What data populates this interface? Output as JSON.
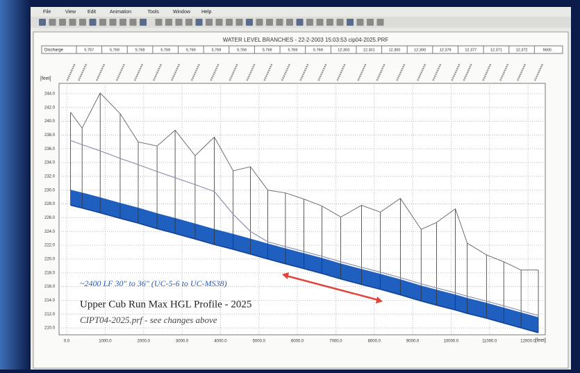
{
  "window": {
    "menu": [
      "File",
      "View",
      "Edit",
      "Animation",
      "Tools",
      "Window",
      "Help"
    ]
  },
  "discharge": {
    "label": "Discharge",
    "values": [
      "5.757",
      "5.769",
      "5.769",
      "5.769",
      "5.769",
      "5.769",
      "5.769",
      "5.769",
      "5.769",
      "5.769",
      "12.303",
      "12.301",
      "12.300",
      "12.300",
      "12.379",
      "12.377",
      "12.371",
      "12.372",
      "9600"
    ]
  },
  "chart_data": {
    "type": "profile",
    "title": "WATER LEVEL  BRANCHES - 22-2-2003 15:03:53 cip04-2025.PRF",
    "y_unit": "[feet]",
    "x_unit": "[feet]",
    "x": [
      100,
      400,
      870,
      1390,
      1860,
      2350,
      2820,
      3340,
      3840,
      4330,
      4780,
      5230,
      5690,
      6170,
      6640,
      7130,
      7670,
      8160,
      8680,
      9220,
      9620,
      10110,
      10420,
      10920,
      11370,
      11820,
      12270
    ],
    "ground": {
      "color": "#6e6e6e",
      "values": [
        241.3,
        239.0,
        244.1,
        241.1,
        237.0,
        236.4,
        238.7,
        235.0,
        237.7,
        232.8,
        233.4,
        230.0,
        229.6,
        228.7,
        227.7,
        226.1,
        227.8,
        226.8,
        228.8,
        224.3,
        225.3,
        227.3,
        222.3,
        220.6,
        219.6,
        218.4,
        218.4
      ]
    },
    "water_level": {
      "color": "#8d93b0",
      "values": [
        237.2,
        236.6,
        235.7,
        234.6,
        233.7,
        232.7,
        231.8,
        230.8,
        229.8,
        226.5,
        224.0,
        222.5,
        221.8,
        221.1,
        220.4,
        219.6,
        218.8,
        218.1,
        217.3,
        216.4,
        215.8,
        215.1,
        214.6,
        213.9,
        213.2,
        212.5,
        211.8
      ]
    },
    "crown": {
      "color": "#1f5fbf",
      "values": [
        230.0,
        229.6,
        228.9,
        228.1,
        227.4,
        226.6,
        225.9,
        225.1,
        224.3,
        223.6,
        222.9,
        222.2,
        221.5,
        220.8,
        220.1,
        219.3,
        218.5,
        217.8,
        217.0,
        216.1,
        215.5,
        214.8,
        214.3,
        213.6,
        212.9,
        212.2,
        211.5
      ]
    },
    "invert": {
      "color": "#0e3f94",
      "values": [
        227.8,
        227.4,
        226.7,
        225.9,
        225.2,
        224.4,
        223.7,
        222.9,
        222.1,
        221.4,
        220.7,
        220.0,
        219.3,
        218.6,
        217.9,
        217.1,
        216.3,
        215.6,
        214.8,
        213.9,
        213.3,
        212.6,
        212.1,
        211.4,
        210.7,
        210.0,
        209.3
      ]
    },
    "xlim": [
      -200,
      12450
    ],
    "ylim": [
      209,
      245.5
    ],
    "xticks": [
      {
        "value": 0,
        "label": "0.0"
      },
      {
        "value": 1000,
        "label": "1000.0"
      },
      {
        "value": 2000,
        "label": "2000.0"
      },
      {
        "value": 3000,
        "label": "3000.0"
      },
      {
        "value": 4000,
        "label": "4000.0"
      },
      {
        "value": 5000,
        "label": "5000.0"
      },
      {
        "value": 6000,
        "label": "6000.0"
      },
      {
        "value": 7000,
        "label": "7000.0"
      },
      {
        "value": 8000,
        "label": "8000.0"
      },
      {
        "value": 9000,
        "label": "9000.0"
      },
      {
        "value": 10000,
        "label": "10000.0"
      },
      {
        "value": 11000,
        "label": "11000.0"
      },
      {
        "value": 12000,
        "label": "12000.0"
      }
    ],
    "yticks": [
      {
        "value": 210,
        "label": "210.0"
      },
      {
        "value": 212,
        "label": "212.0"
      },
      {
        "value": 214,
        "label": "214.0"
      },
      {
        "value": 216,
        "label": "216.0"
      },
      {
        "value": 218,
        "label": "218.0"
      },
      {
        "value": 220,
        "label": "220.0"
      },
      {
        "value": 222,
        "label": "222.0"
      },
      {
        "value": 224,
        "label": "224.0"
      },
      {
        "value": 226,
        "label": "226.0"
      },
      {
        "value": 228,
        "label": "228.0"
      },
      {
        "value": 230,
        "label": "230.0"
      },
      {
        "value": 232,
        "label": "232.0"
      },
      {
        "value": 234,
        "label": "234.0"
      },
      {
        "value": 236,
        "label": "236.0"
      },
      {
        "value": 238,
        "label": "238.0"
      },
      {
        "value": 240,
        "label": "240.0"
      },
      {
        "value": 242,
        "label": "242.0"
      },
      {
        "value": 244,
        "label": "244.0"
      }
    ],
    "grid": true,
    "annotations": [
      "~2400 LF 30\" to 36\" (UC-5-6 to UC-MS38)",
      "Upper Cub Run Max HGL Profile - 2025",
      "CIPT04-2025.prf - see changes above"
    ]
  }
}
